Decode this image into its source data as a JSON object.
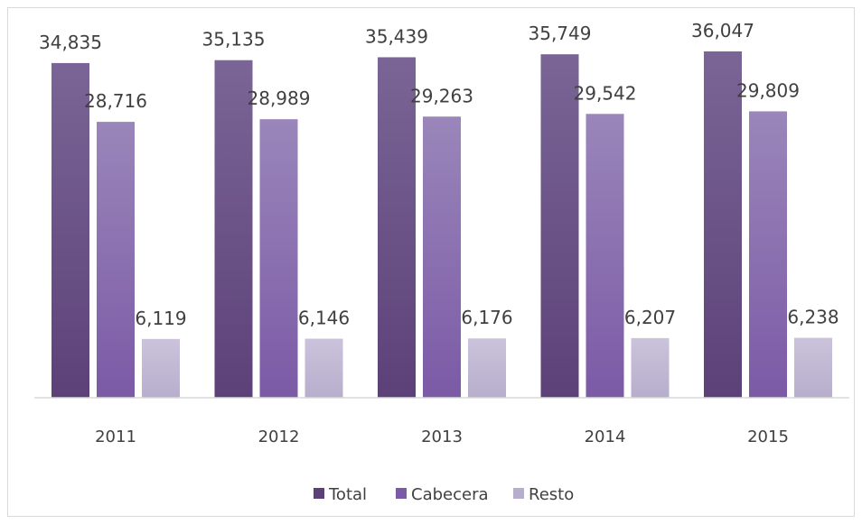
{
  "chart_data": {
    "type": "bar",
    "categories": [
      "2011",
      "2012",
      "2013",
      "2014",
      "2015"
    ],
    "series": [
      {
        "name": "Total",
        "values": [
          34835,
          35135,
          35439,
          35749,
          36047
        ],
        "labels": [
          "34,835",
          "35,135",
          "35,439",
          "35,749",
          "36,047"
        ]
      },
      {
        "name": "Cabecera",
        "values": [
          28716,
          28989,
          29263,
          29542,
          29809
        ],
        "labels": [
          "28,716",
          "28,989",
          "29,263",
          "29,542",
          "29,809"
        ]
      },
      {
        "name": "Resto",
        "values": [
          6119,
          6146,
          6176,
          6207,
          6238
        ],
        "labels": [
          "6,119",
          "6,146",
          "6,176",
          "6,207",
          "6,238"
        ]
      }
    ],
    "title": "",
    "xlabel": "",
    "ylabel": "",
    "ylim": [
      0,
      40000
    ],
    "grid": false,
    "legend": "bottom"
  },
  "colors": {
    "total": [
      "#7a6596",
      "#5c4178"
    ],
    "cabecera": [
      "#9a86ba",
      "#7b5aa6"
    ],
    "resto": [
      "#cbc3db",
      "#b7aecd"
    ],
    "axis": "#d9d9d9"
  }
}
